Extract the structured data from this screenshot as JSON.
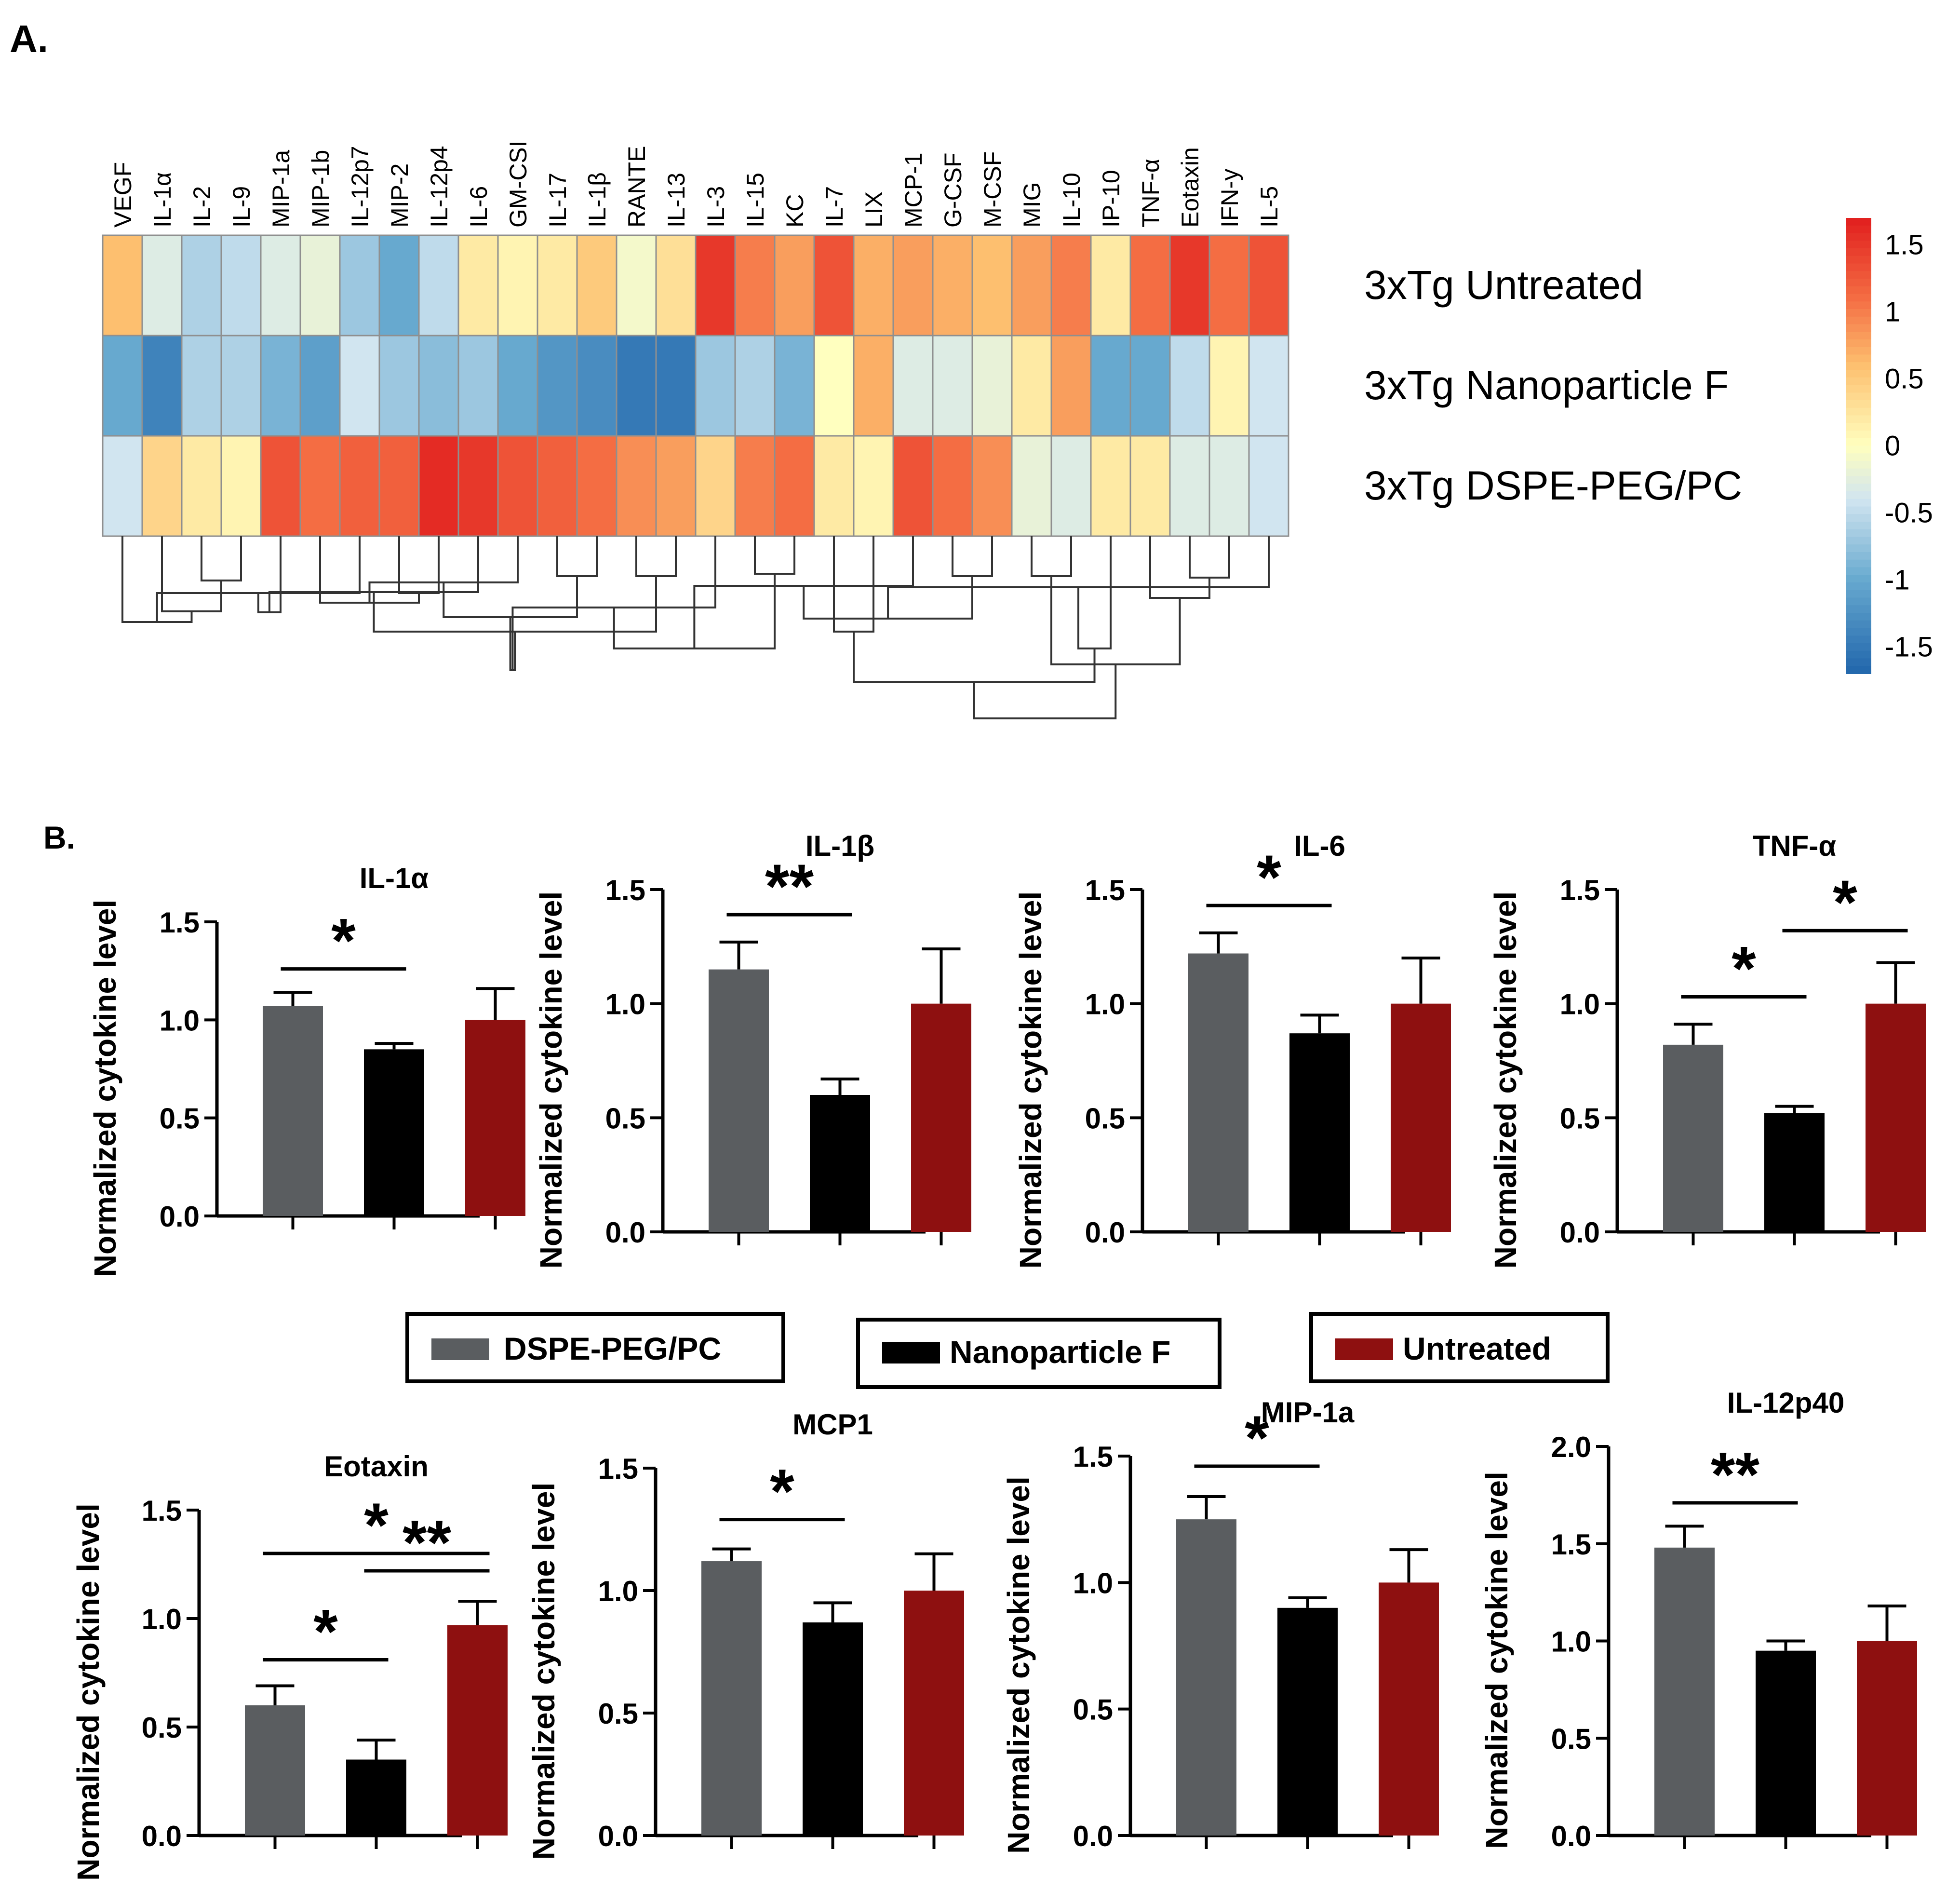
{
  "panel_labels": {
    "a": "A.",
    "b": "B."
  },
  "colors": {
    "dspe": "#5a5d60",
    "nano": "#000000",
    "untreated": "#8e1010"
  },
  "legend": {
    "dspe_label": "DSPE-PEG/PC",
    "nano_label": "Nanoparticle F",
    "untreated_label": "Untreated"
  },
  "chart_data": [
    {
      "type": "heatmap",
      "title": "",
      "columns": [
        "VEGF",
        "IL-1α",
        "IL-2",
        "IL-9",
        "MIP-1a",
        "MIP-1b",
        "IL-12p7",
        "MIP-2",
        "IL-12p4",
        "IL-6",
        "GM-CSI",
        "IL-17",
        "IL-1β",
        "RANTE",
        "IL-13",
        "IL-3",
        "IL-15",
        "KC",
        "IL-7",
        "LIX",
        "MCP-1",
        "G-CSF",
        "M-CSF",
        "MIG",
        "IL-10",
        "IP-10",
        "TNF-α",
        "Eotaxin",
        "IFN-y",
        "IL-5"
      ],
      "rows": [
        "3xTg Untreated",
        "3xTg Nanoparticle F",
        "3xTg DSPE-PEG/PC"
      ],
      "values": [
        [
          0.6,
          -0.3,
          -0.6,
          -0.5,
          -0.3,
          -0.2,
          -0.7,
          -1.0,
          -0.5,
          0.2,
          0.1,
          0.2,
          0.5,
          -0.1,
          0.3,
          1.5,
          1.0,
          0.8,
          1.3,
          0.7,
          0.8,
          0.7,
          0.6,
          0.8,
          1.0,
          0.2,
          1.1,
          1.5,
          1.1,
          1.3
        ],
        [
          -1.0,
          -1.4,
          -0.6,
          -0.6,
          -0.9,
          -1.1,
          -0.4,
          -0.7,
          -0.8,
          -0.7,
          -1.0,
          -1.2,
          -1.3,
          -1.5,
          -1.5,
          -0.7,
          -0.6,
          -0.9,
          0.0,
          0.7,
          -0.3,
          -0.3,
          -0.2,
          0.2,
          0.8,
          -1.0,
          -1.0,
          -0.5,
          0.1,
          -0.4
        ],
        [
          -0.4,
          0.4,
          0.2,
          0.1,
          1.3,
          1.1,
          1.2,
          1.2,
          1.6,
          1.5,
          1.3,
          1.2,
          1.1,
          0.9,
          0.8,
          0.4,
          1.0,
          1.1,
          0.2,
          0.1,
          1.3,
          1.1,
          0.9,
          -0.2,
          -0.3,
          0.2,
          0.2,
          -0.3,
          -0.3,
          -0.4
        ]
      ],
      "colorbar": {
        "range": [
          -1.7,
          1.7
        ],
        "ticks": [
          "1.5",
          "1",
          "0.5",
          "0",
          "-0.5",
          "-1",
          "-1.5"
        ],
        "tick_values": [
          1.5,
          1,
          0.5,
          0,
          -0.5,
          -1,
          -1.5
        ]
      }
    },
    {
      "type": "bar",
      "title": "IL-1α",
      "ylabel": "Normalized cytokine level",
      "ylim": [
        0,
        1.5
      ],
      "yticks": [
        "0.0",
        "0.5",
        "1.0",
        "1.5"
      ],
      "categories": [
        "DSPE-PEG/PC",
        "Nanoparticle F",
        "Untreated"
      ],
      "values": [
        1.07,
        0.85,
        1.0
      ],
      "errors": [
        0.07,
        0.03,
        0.16
      ],
      "significance": [
        {
          "pair": [
            0,
            1
          ],
          "label": "*"
        }
      ]
    },
    {
      "type": "bar",
      "title": "IL-1β",
      "ylabel": "Normalized cytokine level",
      "ylim": [
        0,
        1.5
      ],
      "yticks": [
        "0.0",
        "0.5",
        "1.0",
        "1.5"
      ],
      "categories": [
        "DSPE-PEG/PC",
        "Nanoparticle F",
        "Untreated"
      ],
      "values": [
        1.15,
        0.6,
        1.0
      ],
      "errors": [
        0.12,
        0.07,
        0.24
      ],
      "significance": [
        {
          "pair": [
            0,
            1
          ],
          "label": "**"
        }
      ]
    },
    {
      "type": "bar",
      "title": "IL-6",
      "ylabel": "Normalized cytokine level",
      "ylim": [
        0,
        1.5
      ],
      "yticks": [
        "0.0",
        "0.5",
        "1.0",
        "1.5"
      ],
      "categories": [
        "DSPE-PEG/PC",
        "Nanoparticle F",
        "Untreated"
      ],
      "values": [
        1.22,
        0.87,
        1.0
      ],
      "errors": [
        0.09,
        0.08,
        0.2
      ],
      "significance": [
        {
          "pair": [
            0,
            1
          ],
          "label": "*"
        }
      ]
    },
    {
      "type": "bar",
      "title": "TNF-α",
      "ylabel": "Normalized cytokine level",
      "ylim": [
        0,
        1.5
      ],
      "yticks": [
        "0.0",
        "0.5",
        "1.0",
        "1.5"
      ],
      "categories": [
        "DSPE-PEG/PC",
        "Nanoparticle F",
        "Untreated"
      ],
      "values": [
        0.82,
        0.52,
        1.0
      ],
      "errors": [
        0.09,
        0.03,
        0.18
      ],
      "significance": [
        {
          "pair": [
            0,
            1
          ],
          "label": "*"
        },
        {
          "pair": [
            1,
            2
          ],
          "label": "*"
        }
      ]
    },
    {
      "type": "bar",
      "title": "Eotaxin",
      "ylabel": "Normalized cytokine level",
      "ylim": [
        0,
        1.5
      ],
      "yticks": [
        "0.0",
        "0.5",
        "1.0",
        "1.5"
      ],
      "categories": [
        "DSPE-PEG/PC",
        "Nanoparticle F",
        "Untreated"
      ],
      "values": [
        0.6,
        0.35,
        0.97
      ],
      "errors": [
        0.09,
        0.09,
        0.11
      ],
      "significance": [
        {
          "pair": [
            0,
            1
          ],
          "label": "*"
        },
        {
          "pair": [
            1,
            2
          ],
          "label": "**"
        },
        {
          "pair": [
            0,
            2
          ],
          "label": "*"
        }
      ]
    },
    {
      "type": "bar",
      "title": "MCP1",
      "ylabel": "Normalized cytokine level",
      "ylim": [
        0,
        1.5
      ],
      "yticks": [
        "0.0",
        "0.5",
        "1.0",
        "1.5"
      ],
      "categories": [
        "DSPE-PEG/PC",
        "Nanoparticle F",
        "Untreated"
      ],
      "values": [
        1.12,
        0.87,
        1.0
      ],
      "errors": [
        0.05,
        0.08,
        0.15
      ],
      "significance": [
        {
          "pair": [
            0,
            1
          ],
          "label": "*"
        }
      ]
    },
    {
      "type": "bar",
      "title": "MIP-1a",
      "ylabel": "Normalized cytokine level",
      "ylim": [
        0,
        1.5
      ],
      "yticks": [
        "0.0",
        "0.5",
        "1.0",
        "1.5"
      ],
      "categories": [
        "DSPE-PEG/PC",
        "Nanoparticle F",
        "Untreated"
      ],
      "values": [
        1.25,
        0.9,
        1.0
      ],
      "errors": [
        0.09,
        0.04,
        0.13
      ],
      "significance": [
        {
          "pair": [
            0,
            1
          ],
          "label": "*"
        }
      ]
    },
    {
      "type": "bar",
      "title": "IL-12p40",
      "ylabel": "Normalized cytokine level",
      "ylim": [
        0,
        2.0
      ],
      "yticks": [
        "0.0",
        "0.5",
        "1.0",
        "1.5",
        "2.0"
      ],
      "categories": [
        "DSPE-PEG/PC",
        "Nanoparticle F",
        "Untreated"
      ],
      "values": [
        1.48,
        0.95,
        1.0
      ],
      "errors": [
        0.11,
        0.05,
        0.18
      ],
      "significance": [
        {
          "pair": [
            0,
            1
          ],
          "label": "**"
        }
      ]
    }
  ]
}
